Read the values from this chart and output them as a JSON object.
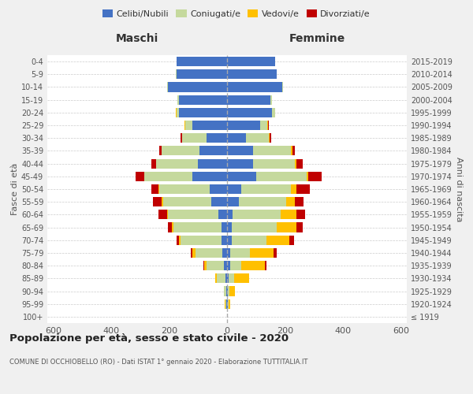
{
  "age_groups": [
    "100+",
    "95-99",
    "90-94",
    "85-89",
    "80-84",
    "75-79",
    "70-74",
    "65-69",
    "60-64",
    "55-59",
    "50-54",
    "45-49",
    "40-44",
    "35-39",
    "30-34",
    "25-29",
    "20-24",
    "15-19",
    "10-14",
    "5-9",
    "0-4"
  ],
  "birth_years": [
    "≤ 1919",
    "1920-1924",
    "1925-1929",
    "1930-1934",
    "1935-1939",
    "1940-1944",
    "1945-1949",
    "1950-1954",
    "1955-1959",
    "1960-1964",
    "1965-1969",
    "1970-1974",
    "1975-1979",
    "1980-1984",
    "1985-1989",
    "1990-1994",
    "1995-1999",
    "2000-2004",
    "2005-2009",
    "2010-2014",
    "2015-2019"
  ],
  "maschi": {
    "celibi": [
      0,
      2,
      2,
      5,
      10,
      15,
      20,
      20,
      30,
      55,
      60,
      120,
      100,
      95,
      70,
      120,
      165,
      165,
      205,
      175,
      175
    ],
    "coniugati": [
      1,
      4,
      8,
      30,
      60,
      95,
      140,
      165,
      175,
      165,
      175,
      165,
      145,
      130,
      85,
      25,
      10,
      5,
      2,
      2,
      0
    ],
    "vedovi": [
      0,
      1,
      2,
      5,
      10,
      10,
      5,
      5,
      2,
      5,
      1,
      0,
      0,
      0,
      0,
      1,
      1,
      0,
      0,
      0,
      0
    ],
    "divorziati": [
      0,
      0,
      0,
      0,
      2,
      5,
      10,
      15,
      30,
      30,
      25,
      30,
      15,
      8,
      5,
      2,
      0,
      0,
      0,
      0,
      0
    ]
  },
  "femmine": {
    "nubili": [
      0,
      2,
      2,
      5,
      10,
      10,
      15,
      15,
      20,
      40,
      50,
      100,
      90,
      90,
      65,
      115,
      155,
      150,
      190,
      170,
      165
    ],
    "coniugate": [
      1,
      3,
      5,
      20,
      40,
      70,
      120,
      155,
      165,
      165,
      170,
      175,
      145,
      130,
      80,
      25,
      10,
      5,
      2,
      2,
      0
    ],
    "vedove": [
      0,
      5,
      20,
      50,
      80,
      80,
      80,
      70,
      55,
      30,
      20,
      5,
      5,
      5,
      2,
      1,
      0,
      0,
      0,
      0,
      0
    ],
    "divorziate": [
      0,
      0,
      0,
      0,
      5,
      10,
      15,
      20,
      30,
      30,
      45,
      45,
      20,
      10,
      5,
      2,
      0,
      0,
      0,
      0,
      0
    ]
  },
  "colors": {
    "celibi": "#4472c4",
    "coniugati": "#c5d99d",
    "vedovi": "#ffc000",
    "divorziati": "#c00000"
  },
  "xlim": 620,
  "title": "Popolazione per età, sesso e stato civile - 2020",
  "subtitle": "COMUNE DI OCCHIOBELLO (RO) - Dati ISTAT 1° gennaio 2020 - Elaborazione TUTTITALIA.IT",
  "ylabel_left": "Fasce di età",
  "ylabel_right": "Anni di nascita",
  "xlabel_left": "Maschi",
  "xlabel_right": "Femmine",
  "bg_color": "#f0f0f0",
  "plot_bg": "#ffffff"
}
